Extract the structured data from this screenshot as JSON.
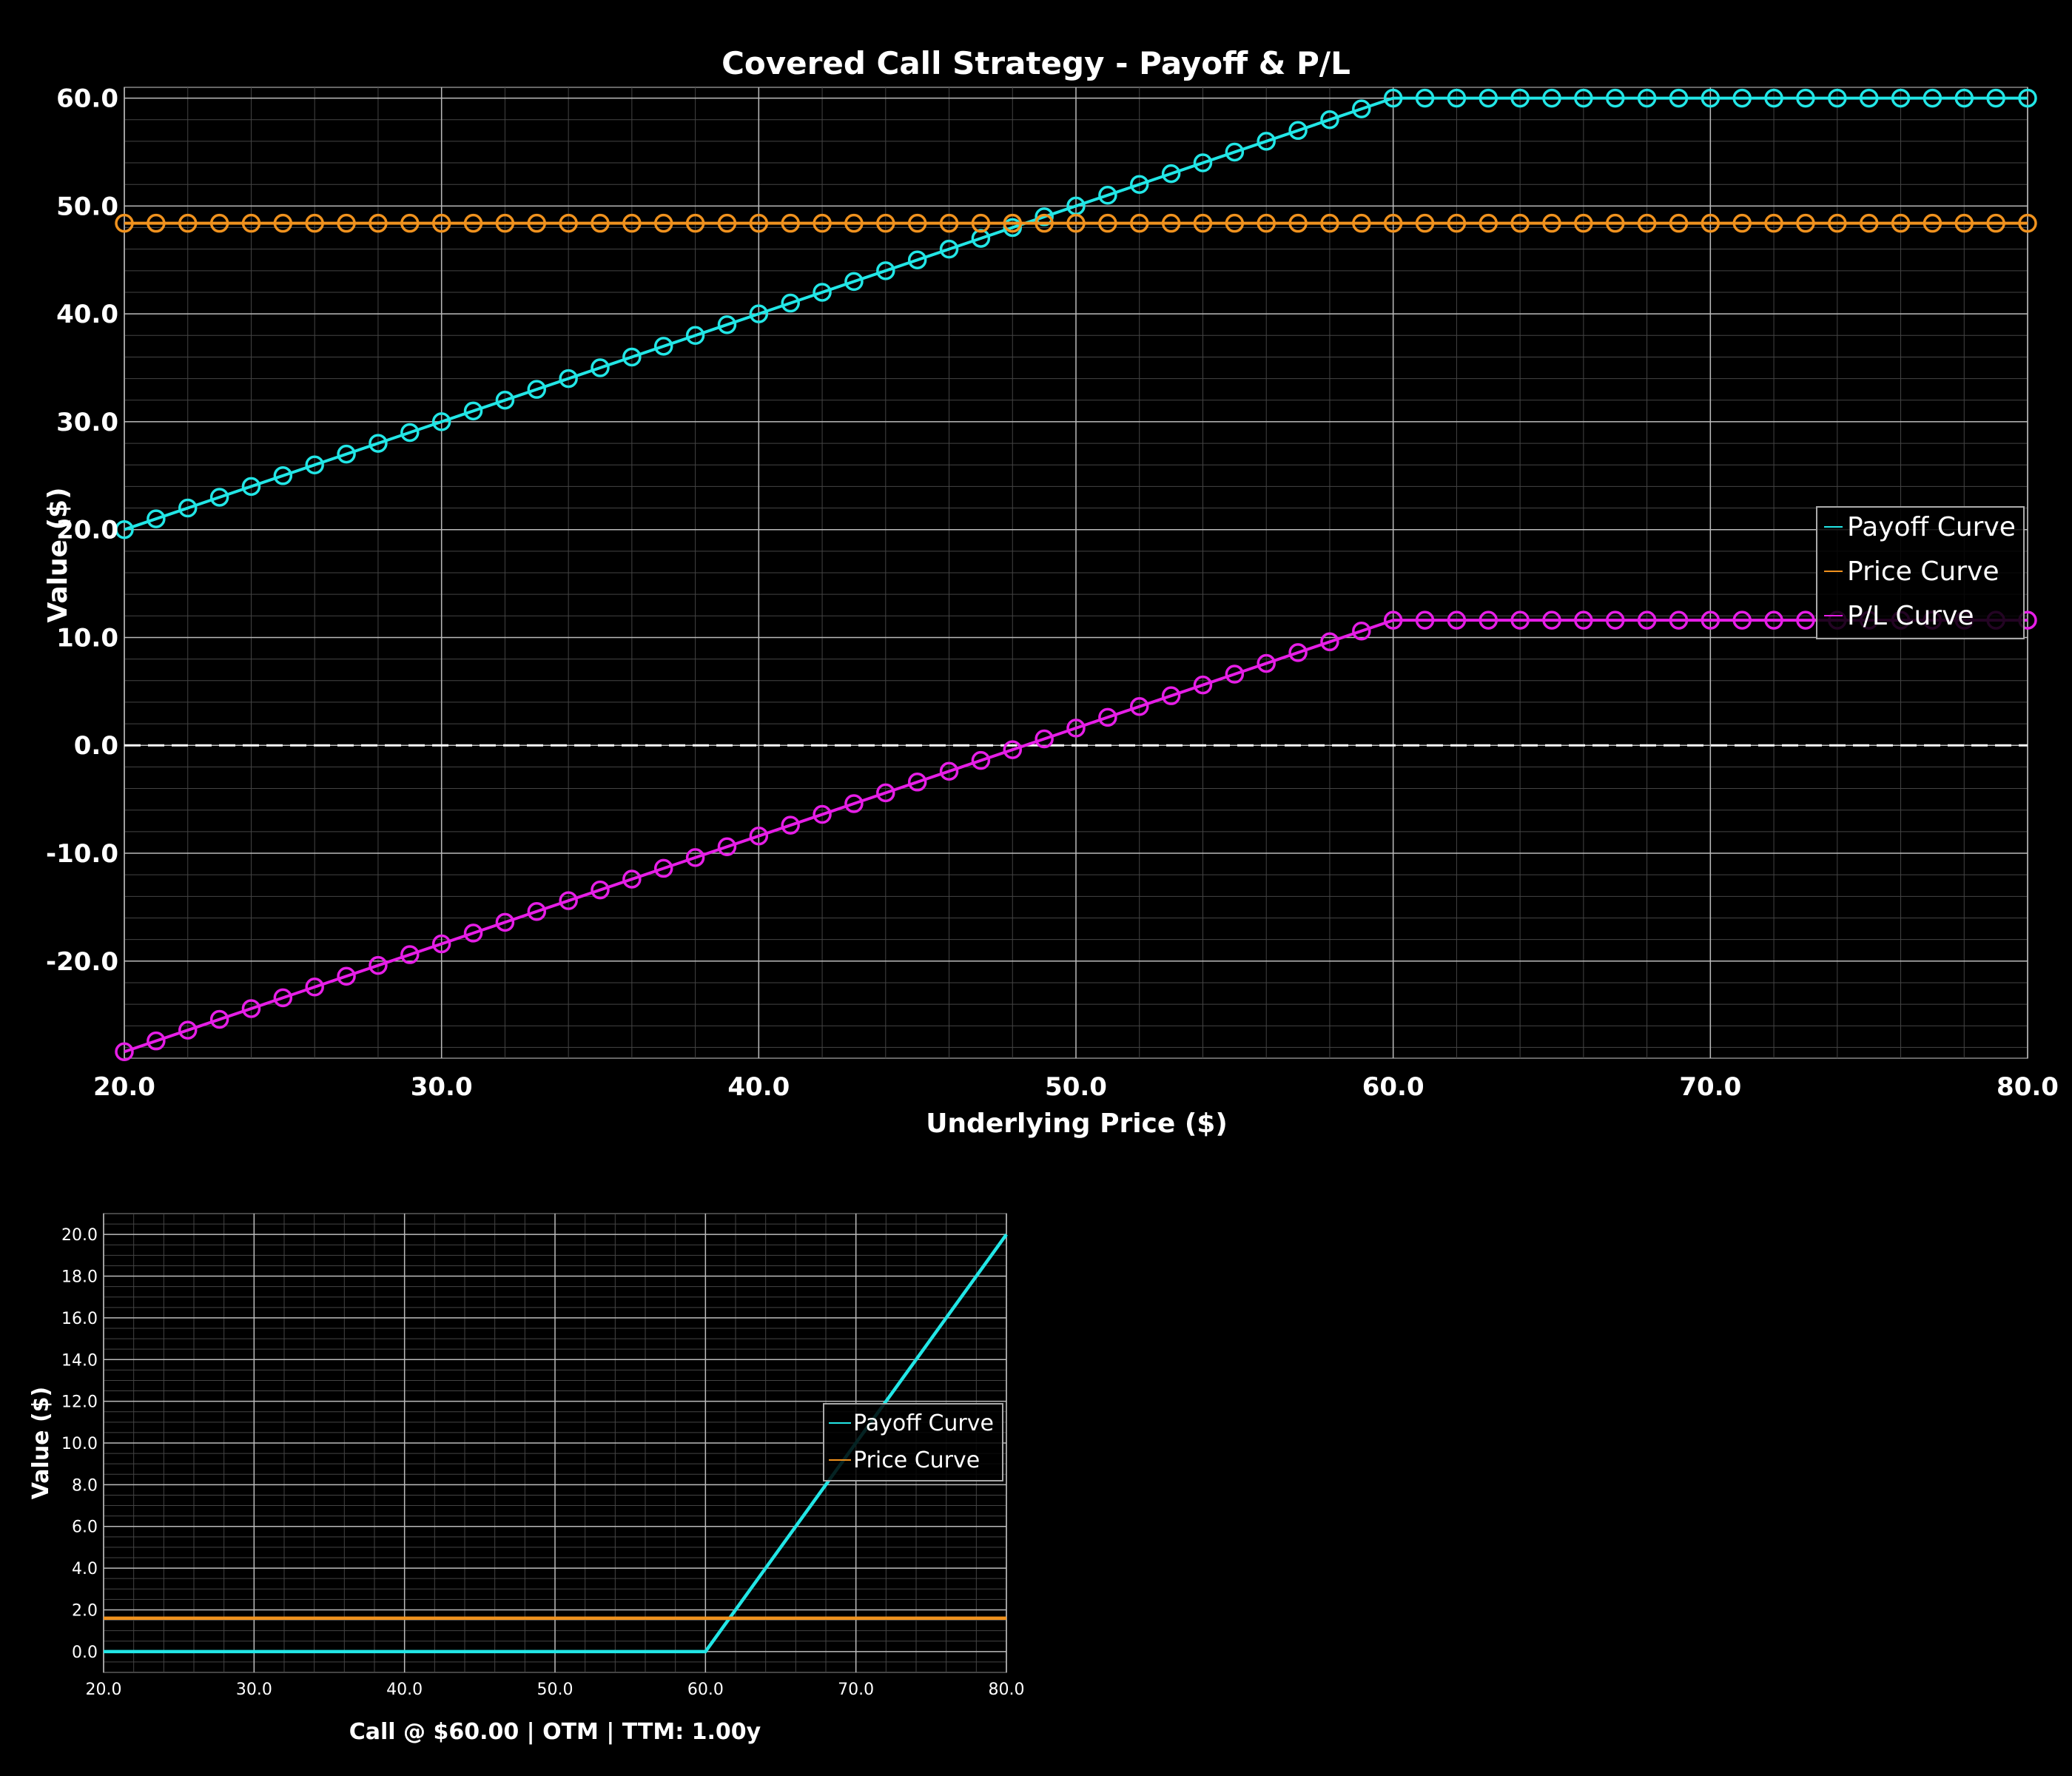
{
  "chart_data": [
    {
      "type": "line",
      "title": "Covered Call Strategy - Payoff & P/L",
      "xlabel": "Underlying Price ($)",
      "ylabel": "Value ($)",
      "xlim": [
        20,
        80
      ],
      "ylim": [
        -29,
        61
      ],
      "xticks": [
        "20.0",
        "30.0",
        "40.0",
        "50.0",
        "60.0",
        "70.0",
        "80.0"
      ],
      "yticks": [
        "60.0",
        "50.0",
        "40.0",
        "30.0",
        "20.0",
        "10.0",
        "0.0",
        "-10.0",
        "-20.0"
      ],
      "grid": true,
      "legend": "center-right",
      "zero_line": true,
      "series": [
        {
          "name": "Payoff Curve",
          "color": "#22e6e6",
          "marker": "circle",
          "points": [
            [
              20,
              20
            ],
            [
              60,
              60
            ],
            [
              80,
              60
            ]
          ]
        },
        {
          "name": "Price Curve",
          "color": "#f0921e",
          "marker": "circle",
          "points": [
            [
              20,
              48.4
            ],
            [
              80,
              48.4
            ]
          ]
        },
        {
          "name": "P/L Curve",
          "color": "#e61ee6",
          "marker": "circle",
          "points": [
            [
              20,
              -28.4
            ],
            [
              60,
              11.6
            ],
            [
              80,
              11.6
            ]
          ]
        }
      ],
      "marker_step": 1
    },
    {
      "type": "line",
      "title": "",
      "xlabel": "Call @ $60.00 | OTM | TTM: 1.00y",
      "ylabel": "Value ($)",
      "xlim": [
        20,
        80
      ],
      "ylim": [
        -1,
        21
      ],
      "xticks": [
        "20.0",
        "30.0",
        "40.0",
        "50.0",
        "60.0",
        "70.0",
        "80.0"
      ],
      "yticks": [
        "20.0",
        "18.0",
        "16.0",
        "14.0",
        "12.0",
        "10.0",
        "8.0",
        "6.0",
        "4.0",
        "2.0",
        "0.0"
      ],
      "grid": true,
      "legend": "center-right",
      "series": [
        {
          "name": "Payoff Curve",
          "color": "#22e6e6",
          "points": [
            [
              20,
              0
            ],
            [
              60,
              0
            ],
            [
              80,
              20
            ]
          ]
        },
        {
          "name": "Price Curve",
          "color": "#f0921e",
          "points": [
            [
              20,
              1.6
            ],
            [
              80,
              1.6
            ]
          ]
        }
      ]
    }
  ]
}
